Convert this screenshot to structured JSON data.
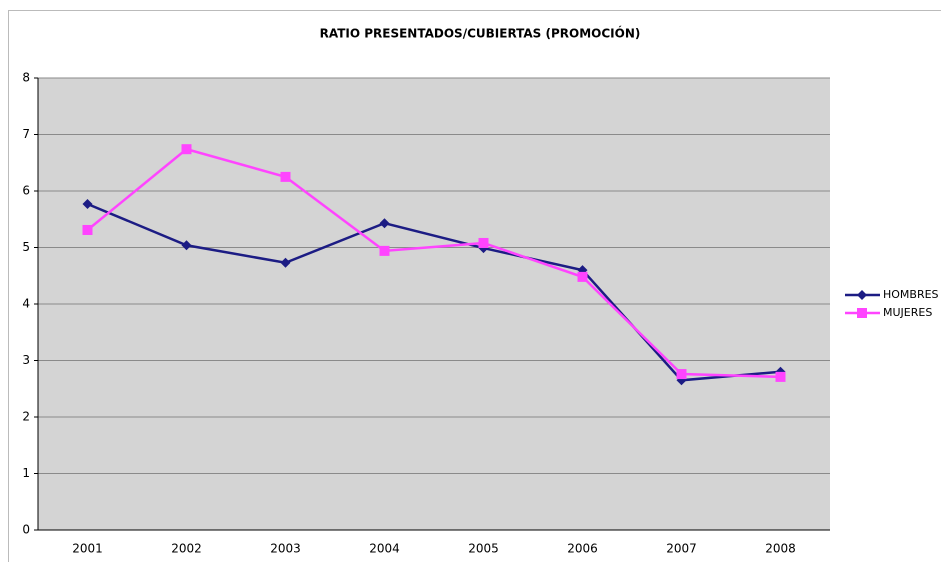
{
  "chart_data": {
    "type": "line",
    "title": "RATIO PRESENTADOS/CUBIERTAS (PROMOCIÓN)",
    "categories": [
      "2001",
      "2002",
      "2003",
      "2004",
      "2005",
      "2006",
      "2007",
      "2008"
    ],
    "series": [
      {
        "name": "HOMBRES",
        "color": "#1c1c84",
        "marker": "diamond",
        "values": [
          5.77,
          5.04,
          4.73,
          5.43,
          4.99,
          4.6,
          2.65,
          2.8
        ]
      },
      {
        "name": "MUJERES",
        "color": "#ff44ff",
        "marker": "square",
        "values": [
          5.31,
          6.74,
          6.25,
          4.94,
          5.08,
          4.48,
          2.76,
          2.71
        ]
      }
    ],
    "ylim": [
      0,
      8
    ],
    "yticks": [
      0,
      1,
      2,
      3,
      4,
      5,
      6,
      7,
      8
    ],
    "grid": true,
    "legend": "right"
  }
}
